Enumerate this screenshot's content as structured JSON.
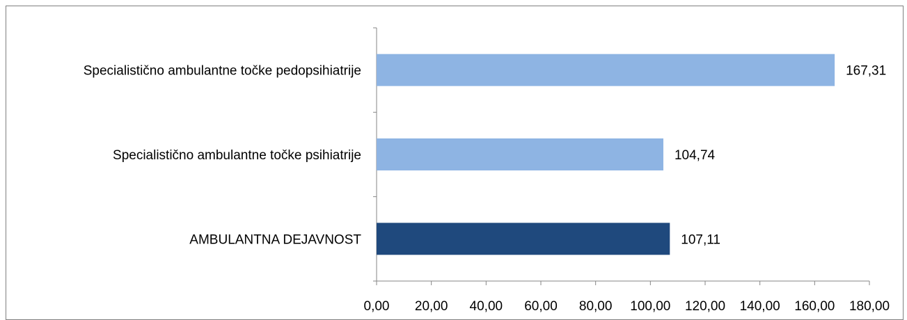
{
  "chart_data": {
    "type": "bar",
    "orientation": "horizontal",
    "categories": [
      "Specialistično ambulantne točke pedopsihiatrije",
      "Specialistično ambulantne točke psihiatrije",
      "AMBULANTNA DEJAVNOST"
    ],
    "values": [
      167.31,
      104.74,
      107.11
    ],
    "data_labels": [
      "167,31",
      "104,74",
      "107,11"
    ],
    "bar_colors": [
      "#8eb4e3",
      "#8eb4e3",
      "#1f497d"
    ],
    "xlim": [
      0,
      180
    ],
    "x_ticks": [
      0,
      20,
      40,
      60,
      80,
      100,
      120,
      140,
      160,
      180
    ],
    "x_tick_labels": [
      "0,00",
      "20,00",
      "40,00",
      "60,00",
      "80,00",
      "100,00",
      "120,00",
      "140,00",
      "160,00",
      "180,00"
    ],
    "title": "",
    "xlabel": "",
    "ylabel": "",
    "grid": false,
    "legend": "none"
  }
}
